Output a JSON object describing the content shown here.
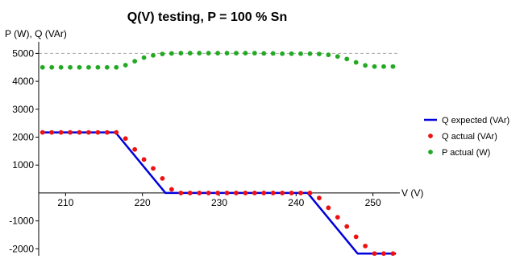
{
  "chart_data": {
    "type": "line",
    "title": "Q(V) testing, P = 100 % Sn",
    "xlabel": "V (V)",
    "ylabel": "P (W), Q (VAr)",
    "xlim": [
      206.5,
      253.5
    ],
    "ylim": [
      -2250,
      5300
    ],
    "xticks": [
      210,
      220,
      230,
      240,
      250
    ],
    "yticks": [
      -2000,
      -1000,
      1000,
      2000,
      3000,
      4000,
      5000
    ],
    "reference_line": {
      "y": 5000,
      "style": "dashed",
      "color": "#aaaaaa"
    },
    "legend_position": "right",
    "colors": {
      "q_expected": "#0000dd",
      "q_actual": "#ee1111",
      "p_actual": "#22aa22"
    },
    "series": [
      {
        "name": "Q expected (VAr)",
        "kind": "line",
        "color": "#0000dd",
        "x": [
          207,
          216.5,
          223,
          241.5,
          248,
          253
        ],
        "y": [
          2170,
          2170,
          0,
          0,
          -2170,
          -2170
        ]
      },
      {
        "name": "Q actual (VAr)",
        "kind": "points",
        "color": "#ee1111",
        "x": [
          207,
          208.2,
          209.4,
          210.6,
          211.8,
          213,
          214.2,
          215.4,
          216.6,
          217.8,
          219,
          220.2,
          221.4,
          222.6,
          223.8,
          225,
          226.2,
          227.4,
          228.6,
          229.8,
          231,
          232.2,
          233.4,
          234.6,
          235.8,
          237,
          238.2,
          239.4,
          240.6,
          241.8,
          243,
          244.2,
          245.4,
          246.6,
          247.8,
          249,
          250.2,
          251.4,
          252.6
        ],
        "y": [
          2170,
          2170,
          2170,
          2170,
          2170,
          2170,
          2170,
          2170,
          2170,
          1950,
          1560,
          1200,
          880,
          520,
          130,
          0,
          0,
          0,
          0,
          0,
          0,
          0,
          0,
          0,
          0,
          0,
          0,
          0,
          0,
          0,
          -180,
          -530,
          -870,
          -1200,
          -1570,
          -1900,
          -2170,
          -2170,
          -2170
        ]
      },
      {
        "name": "P actual (W)",
        "kind": "points",
        "color": "#22aa22",
        "x": [
          207,
          208.2,
          209.4,
          210.6,
          211.8,
          213,
          214.2,
          215.4,
          216.6,
          217.8,
          219,
          220.2,
          221.4,
          222.6,
          223.8,
          225,
          226.2,
          227.4,
          228.6,
          229.8,
          231,
          232.2,
          233.4,
          234.6,
          235.8,
          237,
          238.2,
          239.4,
          240.6,
          241.8,
          243,
          244.2,
          245.4,
          246.6,
          247.8,
          249,
          250.2,
          251.4,
          252.6
        ],
        "y": [
          4500,
          4500,
          4500,
          4500,
          4500,
          4500,
          4500,
          4500,
          4500,
          4580,
          4720,
          4850,
          4930,
          4980,
          5000,
          5010,
          5010,
          5010,
          5010,
          5010,
          5010,
          5010,
          5010,
          5010,
          5000,
          5000,
          4990,
          4990,
          4990,
          4990,
          4980,
          4950,
          4890,
          4800,
          4680,
          4570,
          4530,
          4530,
          4530
        ]
      }
    ]
  }
}
